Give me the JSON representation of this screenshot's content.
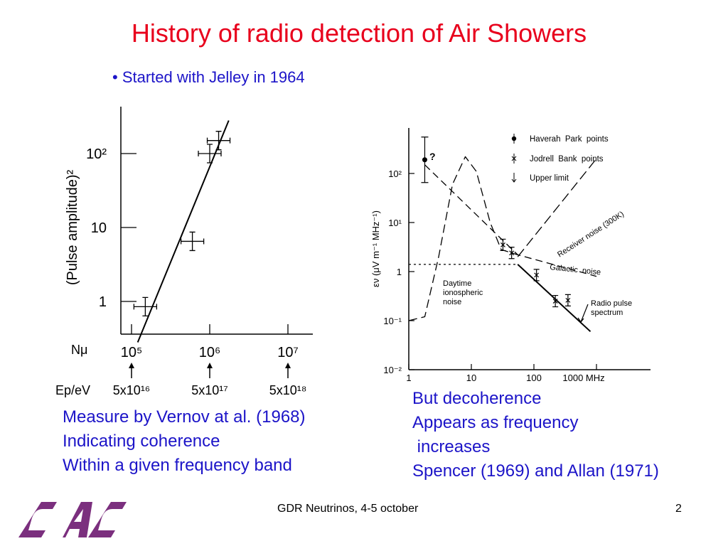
{
  "slide": {
    "title": "History of radio detection of Air Showers",
    "bullet": "• Started with Jelley in 1964",
    "caption_left": [
      "Measure by Vernov at al. (1968)",
      "Indicating coherence",
      "Within a given frequency band"
    ],
    "caption_right": [
      "But decoherence",
      "Appears as frequency",
      " increases",
      "Spencer (1969) and Allan (1971)"
    ],
    "footer": "GDR Neutrinos, 4-5 october",
    "page_number": "2",
    "colors": {
      "title": "#e8001c",
      "body_text": "#1c14c8",
      "logo": "#7b2f7e"
    },
    "logo_icon": "cac-logo-icon"
  },
  "chart_data": [
    {
      "type": "scatter",
      "ylabel": "(Pulse  amplitude)²",
      "xlabel": "Nμ",
      "x_scale": "log",
      "y_scale": "log",
      "xlim": [
        100000,
        10000000
      ],
      "ylim": [
        0.5,
        300
      ],
      "x_ticks": [
        100000,
        1000000,
        10000000
      ],
      "x_tick_labels": [
        "10⁵",
        "10⁶",
        "10⁷"
      ],
      "y_ticks": [
        1,
        10,
        100
      ],
      "y_tick_labels": [
        "1",
        "10",
        "10²"
      ],
      "secondary_label": "Ep/eV",
      "secondary_tick_labels": [
        "5x10¹⁶",
        "5x10¹⁷",
        "5x10¹⁸"
      ],
      "points": [
        {
          "x": 150000,
          "y": 0.85
        },
        {
          "x": 600000,
          "y": 6.5
        },
        {
          "x": 1000000,
          "y": 100
        },
        {
          "x": 1300000,
          "y": 150
        }
      ],
      "fit_line": [
        [
          120000,
          0.28
        ],
        [
          1750000,
          280
        ]
      ]
    },
    {
      "type": "line",
      "ylabel": "εν (μV m⁻¹ MHz⁻¹)",
      "x_scale": "log",
      "y_scale": "log",
      "xlim": [
        1,
        1000
      ],
      "ylim": [
        0.01,
        1000
      ],
      "x_tick_labels": [
        "1",
        "10",
        "100",
        "1000 MHz"
      ],
      "y_tick_labels": [
        "10⁻²",
        "10⁻¹",
        "1",
        "10¹",
        "10²"
      ],
      "legend": [
        "Haverah  Park  points",
        "Jodrell  Bank  points",
        "Upper limit"
      ],
      "legend_position": "top-right",
      "annotations": [
        "?",
        "Receiver noise (300K)",
        "Galactic  noise",
        "Daytime",
        "ionospheric",
        "noise",
        "Radio pulse",
        "spectrum"
      ],
      "series": [
        {
          "name": "Haverah  Park  points",
          "points": [
            {
              "x": 1.8,
              "y": 190
            }
          ]
        },
        {
          "name": "Jodrell  Bank  points",
          "points": [
            {
              "x": 32,
              "y": 3.5
            },
            {
              "x": 44,
              "y": 2.4
            },
            {
              "x": 110,
              "y": 0.85
            },
            {
              "x": 220,
              "y": 0.25
            },
            {
              "x": 350,
              "y": 0.26
            }
          ]
        },
        {
          "name": "Galactic  noise",
          "points": [
            {
              "x": 1.8,
              "y": 150
            },
            {
              "x": 55,
              "y": 2.2
            },
            {
              "x": 1000,
              "y": 0.8
            }
          ]
        },
        {
          "name": "Receiver noise (300K)",
          "points": [
            {
              "x": 55,
              "y": 2.0
            },
            {
              "x": 1000,
              "y": 200
            }
          ]
        },
        {
          "name": "Daytime ionospheric noise",
          "points": [
            {
              "x": 1,
              "y": 0.1
            },
            {
              "x": 1.8,
              "y": 0.12
            },
            {
              "x": 3,
              "y": 2
            },
            {
              "x": 5,
              "y": 60
            },
            {
              "x": 8,
              "y": 220
            },
            {
              "x": 12,
              "y": 110
            },
            {
              "x": 20,
              "y": 10
            },
            {
              "x": 30,
              "y": 2.8
            },
            {
              "x": 55,
              "y": 2.2
            }
          ]
        },
        {
          "name": "Radio pulse spectrum",
          "points": [
            {
              "x": 55,
              "y": 1.4
            },
            {
              "x": 800,
              "y": 0.06
            }
          ]
        },
        {
          "name": "plateau",
          "points": [
            {
              "x": 1,
              "y": 1.4
            },
            {
              "x": 55,
              "y": 1.4
            }
          ]
        }
      ]
    }
  ]
}
